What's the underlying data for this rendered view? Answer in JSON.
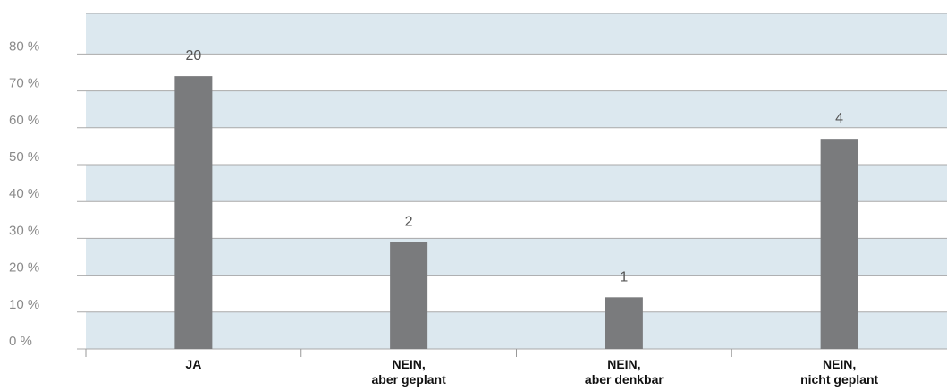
{
  "chart_data": {
    "type": "bar",
    "title": "",
    "xlabel": "",
    "ylabel": "",
    "categories": [
      [
        "JA"
      ],
      [
        "NEIN,",
        "aber geplant"
      ],
      [
        "NEIN,",
        "aber denkbar"
      ],
      [
        "NEIN,",
        "nicht geplant"
      ]
    ],
    "values": [
      74,
      29,
      14,
      57
    ],
    "data_labels": [
      "20",
      "2",
      "1",
      "4"
    ],
    "ylim": [
      0,
      90
    ],
    "yticks": [
      0,
      10,
      20,
      30,
      40,
      50,
      60,
      70,
      80
    ],
    "ytick_labels": [
      "0 %",
      "10 %",
      "20 %",
      "30 %",
      "40 %",
      "50 %",
      "60 %",
      "70 %",
      "80 %"
    ],
    "grid": true,
    "legend": "none",
    "colors": {
      "bar": "#7a7b7d",
      "band": "#dce8ef",
      "gridline": "#a9a9a9",
      "axis": "#999999"
    }
  }
}
